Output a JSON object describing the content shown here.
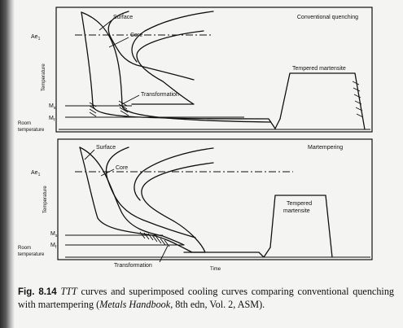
{
  "top_panel": {
    "title": "Conventional quenching",
    "label_surface": "Surface",
    "label_core": "Core",
    "label_ae1": "Ae",
    "label_ae1_sub": "1",
    "label_ms": "M",
    "label_ms_sub": "s",
    "label_mf": "M",
    "label_mf_sub": "f",
    "label_transformation": "Transformation",
    "label_tempered": "Tempered martensite",
    "ylabel": "Temperature",
    "room_line1": "Room",
    "room_line2": "temperature"
  },
  "bottom_panel": {
    "title": "Martempering",
    "label_surface": "Surface",
    "label_core": "Core",
    "label_ae1": "Ae",
    "label_ae1_sub": "1",
    "label_ms": "M",
    "label_ms_sub": "s",
    "label_mf": "M",
    "label_mf_sub": "f",
    "label_transformation": "Transformation",
    "label_tempered_line1": "Tempered",
    "label_tempered_line2": "martensite",
    "ylabel": "Temperature",
    "room_line1": "Room",
    "room_line2": "temperature",
    "xlabel": "Time"
  },
  "caption": {
    "fig_number": "Fig. 8.14",
    "text_a": "TTT",
    "text_b": " curves and superimposed cooling curves comparing conventional quenching with martempering (",
    "text_c": "Metals Handbook",
    "text_d": ", 8th edn, Vol. 2, ASM)."
  }
}
